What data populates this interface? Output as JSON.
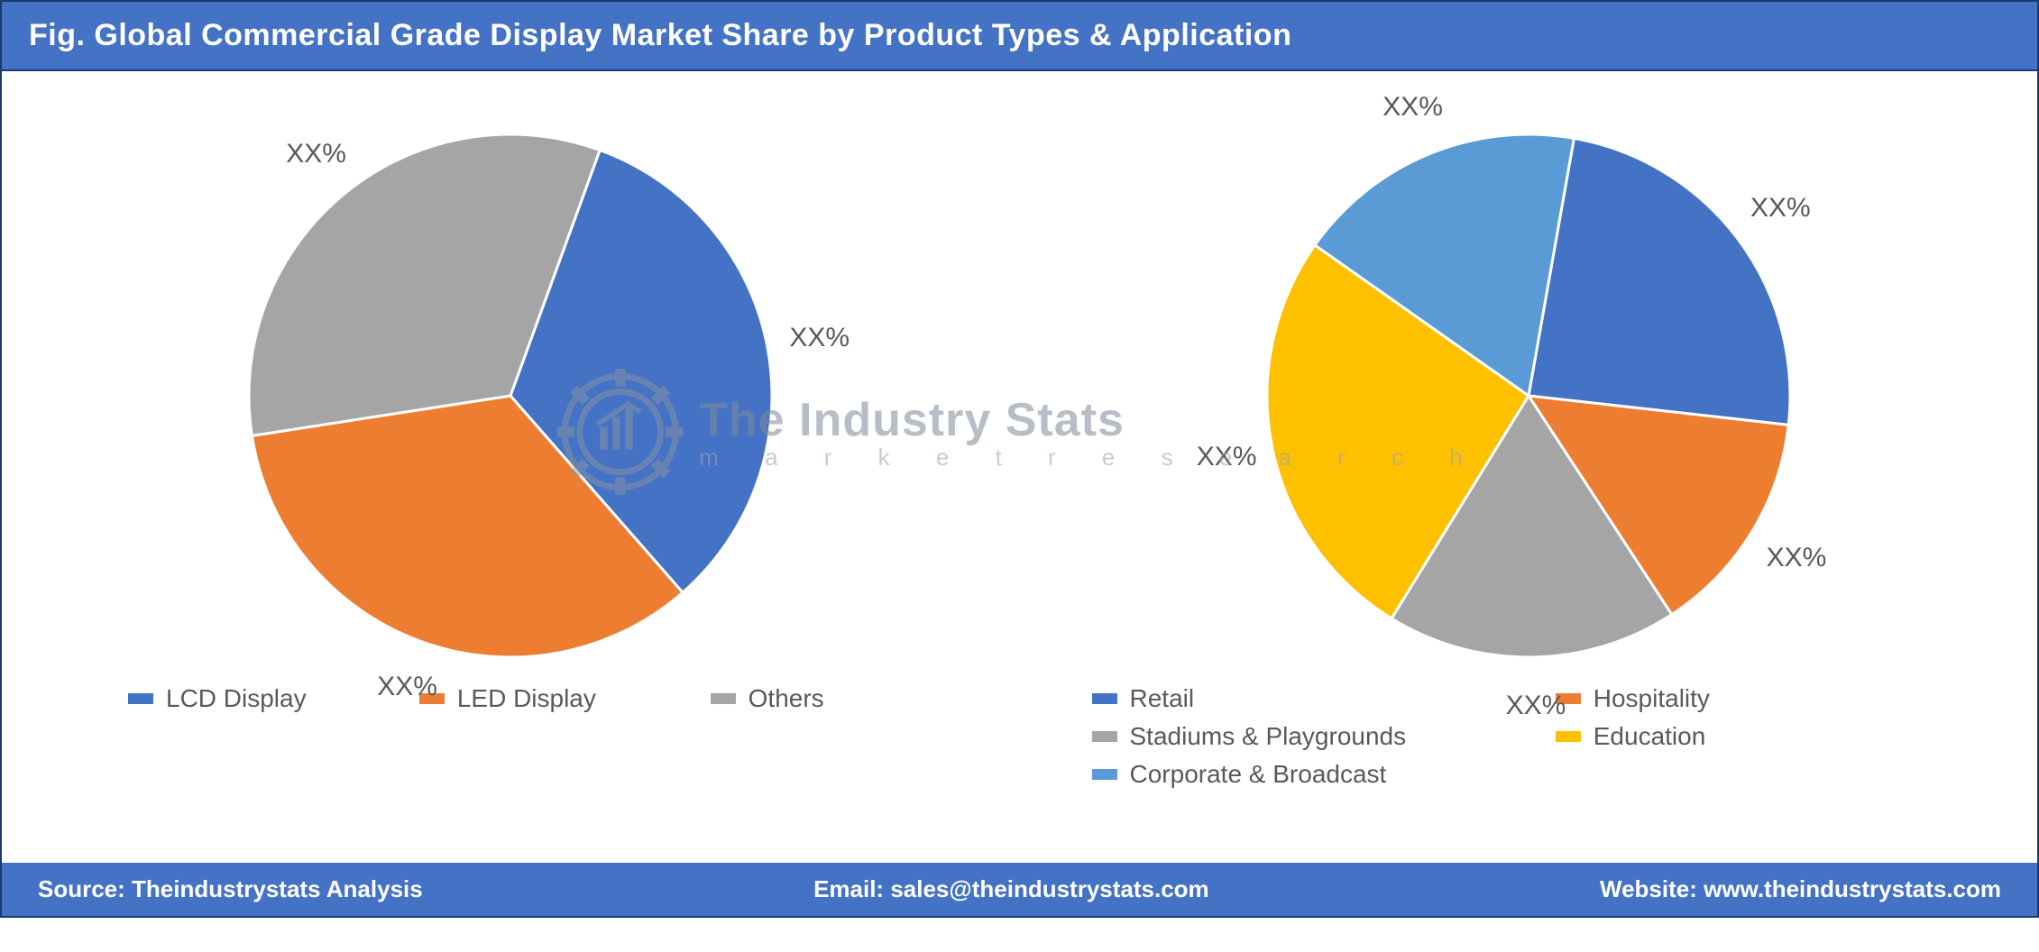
{
  "header": {
    "title": "Fig. Global Commercial Grade Display Market Share by Product Types & Application",
    "bg_color": "#4472c4",
    "text_color": "#ffffff",
    "fontsize": 34
  },
  "watermark": {
    "line1": "The Industry Stats",
    "line2": "m a r k e t   r e s e a r c h",
    "color_primary": "#7f8a99",
    "color_secondary": "#9aa4b2"
  },
  "chart_left": {
    "type": "pie",
    "radius": 290,
    "stroke_color": "#ffffff",
    "stroke_width": 3,
    "label_color": "#595959",
    "label_fontsize": 30,
    "slices": [
      {
        "name": "LCD Display",
        "value": 33,
        "color": "#4472c4",
        "label": "XX%"
      },
      {
        "name": "LED Display",
        "value": 34,
        "color": "#ed7d31",
        "label": "XX%"
      },
      {
        "name": "Others",
        "value": 33,
        "color": "#a5a5a5",
        "label": "XX%"
      }
    ],
    "start_angle_deg": -70
  },
  "chart_right": {
    "type": "pie",
    "radius": 290,
    "stroke_color": "#ffffff",
    "stroke_width": 3,
    "label_color": "#595959",
    "label_fontsize": 30,
    "slices": [
      {
        "name": "Retail",
        "value": 24,
        "color": "#4472c4",
        "label": "XX%"
      },
      {
        "name": "Hospitality",
        "value": 14,
        "color": "#ed7d31",
        "label": "XX%"
      },
      {
        "name": "Stadiums & Playgrounds",
        "value": 18,
        "color": "#a5a5a5",
        "label": "XX%"
      },
      {
        "name": "Education",
        "value": 26,
        "color": "#ffc000",
        "label": "XX%"
      },
      {
        "name": "Corporate & Broadcast",
        "value": 18,
        "color": "#5b9bd5",
        "label": "XX%"
      }
    ],
    "start_angle_deg": -80
  },
  "legend_left": {
    "items": [
      {
        "label": "LCD Display",
        "color": "#4472c4"
      },
      {
        "label": "LED Display",
        "color": "#ed7d31"
      },
      {
        "label": "Others",
        "color": "#a5a5a5"
      }
    ]
  },
  "legend_right": {
    "items": [
      {
        "label": "Retail",
        "color": "#4472c4"
      },
      {
        "label": "Hospitality",
        "color": "#ed7d31"
      },
      {
        "label": "Stadiums & Playgrounds",
        "color": "#a5a5a5"
      },
      {
        "label": "Education",
        "color": "#ffc000"
      },
      {
        "label": "Corporate & Broadcast",
        "color": "#5b9bd5"
      }
    ]
  },
  "footer": {
    "source_label": "Source: ",
    "source_value": "Theindustrystats Analysis",
    "email_label": "Email: ",
    "email_value": "sales@theindustrystats.com",
    "website_label": "Website: ",
    "website_value": "www.theindustrystats.com",
    "bg_color": "#4472c4",
    "text_color": "#ffffff",
    "fontsize": 26
  },
  "frame_border_color": "#1a3a6e"
}
